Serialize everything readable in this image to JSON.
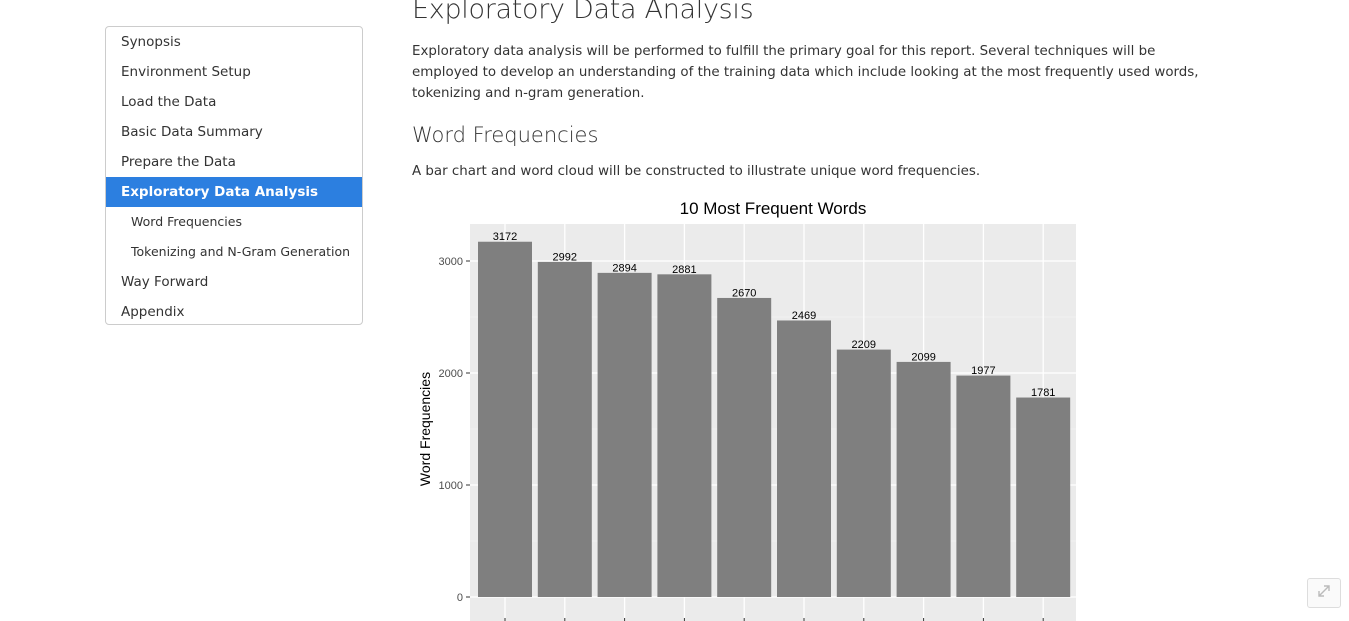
{
  "toc": {
    "items": [
      {
        "label": "Synopsis",
        "sub": false,
        "active": false
      },
      {
        "label": "Environment Setup",
        "sub": false,
        "active": false
      },
      {
        "label": "Load the Data",
        "sub": false,
        "active": false
      },
      {
        "label": "Basic Data Summary",
        "sub": false,
        "active": false
      },
      {
        "label": "Prepare the Data",
        "sub": false,
        "active": false
      },
      {
        "label": "Exploratory Data Analysis",
        "sub": false,
        "active": true
      },
      {
        "label": "Word Frequencies",
        "sub": true,
        "active": false
      },
      {
        "label": "Tokenizing and N-Gram Generation",
        "sub": true,
        "active": false
      },
      {
        "label": "Way Forward",
        "sub": false,
        "active": false
      },
      {
        "label": "Appendix",
        "sub": false,
        "active": false
      }
    ]
  },
  "main": {
    "title": "Exploratory Data Analysis",
    "intro": "Exploratory data analysis will be performed to fulfill the primary goal for this report. Several techniques will be employed to develop an understanding of the training data which include looking at the most frequently used words, tokenizing and n-gram generation.",
    "section_title": "Word Frequencies",
    "section_text": "A bar chart and word cloud will be constructed to illustrate unique word frequencies."
  },
  "chart_data": {
    "type": "bar",
    "title": "10 Most Frequent Words",
    "xlabel": "",
    "ylabel": "Word Frequencies",
    "values": [
      3172,
      2992,
      2894,
      2881,
      2670,
      2469,
      2209,
      2099,
      1977,
      1781
    ],
    "data_labels": [
      "3172",
      "2992",
      "2894",
      "2881",
      "2670",
      "2469",
      "2209",
      "2099",
      "1977",
      "1781"
    ],
    "yticks": [
      0,
      1000,
      2000,
      3000
    ],
    "ytick_labels": [
      "0",
      "1000",
      "2000",
      "3000"
    ],
    "ylim": [
      0,
      3330
    ],
    "grid": true,
    "bar_color": "#7f7f7f",
    "panel_color": "#ebebeb"
  },
  "colors": {
    "accent": "#2c7fe0"
  },
  "icons": {
    "fab": "expand-arrows-icon"
  }
}
